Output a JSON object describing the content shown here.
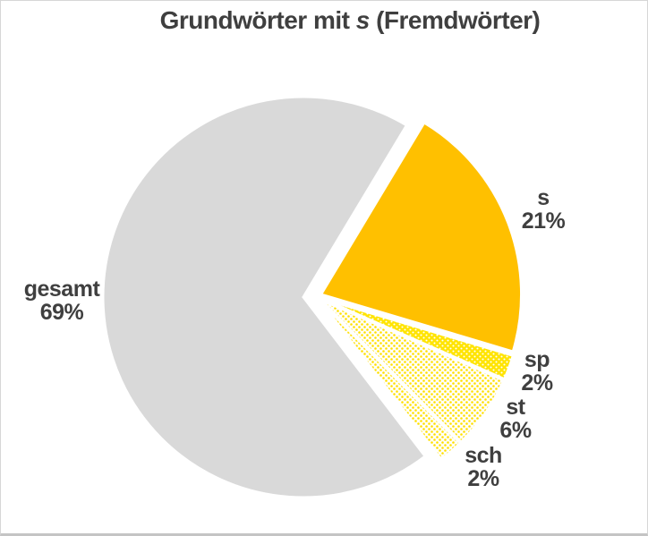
{
  "frame": {
    "background": "#ffffff",
    "border_color": "#d6d6d6"
  },
  "title": {
    "prefix": "Grundwörter mit ",
    "emphasis": "s",
    "suffix": " (Fremdwörter)",
    "full_text": "Grundwörter mit s (Fremdwörter)",
    "color": "#3f3f3f"
  },
  "chart_data": {
    "type": "pie",
    "title": "Grundwörter mit s (Fremdwörter)",
    "unit": "percent",
    "legend": "none",
    "data_label_style": "category name and percentage outside slices",
    "start_angle_deg_clockwise_from_top": 31,
    "label_color": "#3f3f3f",
    "slices": [
      {
        "label": "s",
        "value": 21,
        "display": "21%",
        "color": "#FFC000",
        "pattern": "solid",
        "exploded": true
      },
      {
        "label": "sp",
        "value": 2,
        "display": "2%",
        "color": "#FFE000",
        "pattern": "white-dots-on-yellow",
        "exploded": true
      },
      {
        "label": "st",
        "value": 6,
        "display": "6%",
        "color": "#FFE000",
        "pattern": "yellow-dots-on-white",
        "exploded": true
      },
      {
        "label": "sch",
        "value": 2,
        "display": "2%",
        "color": "#FFE000",
        "pattern": "yellow-dots-on-white",
        "exploded": true
      },
      {
        "label": "gesamt",
        "value": 69,
        "display": "69%",
        "color": "#D9D9D9",
        "pattern": "solid",
        "exploded": false
      }
    ]
  }
}
